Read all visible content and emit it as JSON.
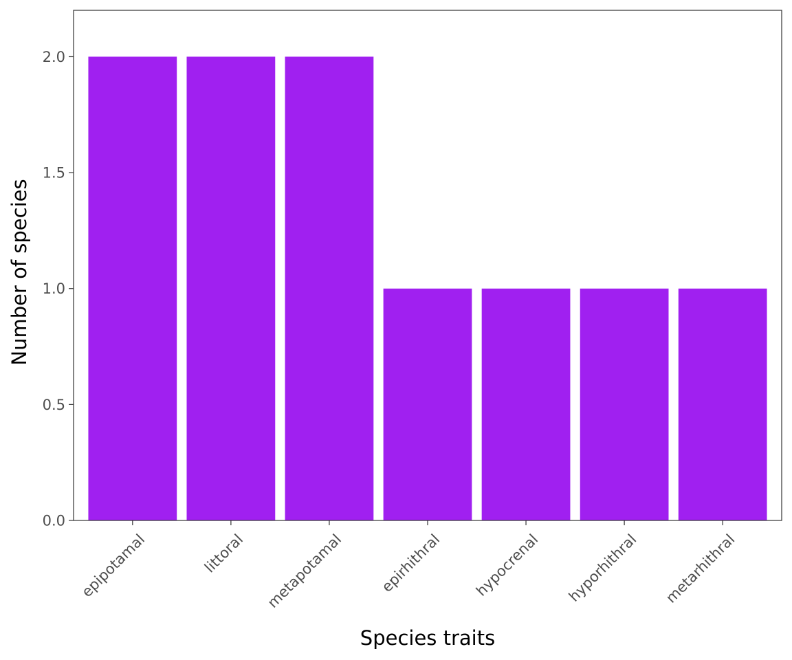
{
  "chart_data": {
    "type": "bar",
    "title": "",
    "xlabel": "Species traits",
    "ylabel": "Number of species",
    "categories": [
      "epipotamal",
      "littoral",
      "metapotamal",
      "epirhithral",
      "hypocrenal",
      "hyporhithral",
      "metarhithral"
    ],
    "values": [
      2,
      2,
      2,
      1,
      1,
      1,
      1
    ],
    "ylim": [
      0,
      2.2
    ],
    "yticks": [
      0.0,
      0.5,
      1.0,
      1.5,
      2.0
    ],
    "ytick_labels": [
      "0.0",
      "0.5",
      "1.0",
      "1.5",
      "2.0"
    ],
    "grid": false,
    "legend": "none",
    "colors": {
      "bar": "#a020f0",
      "panel_border": "#333333",
      "tick": "#333333",
      "tick_label": "#4d4d4d",
      "axis_title": "#000000"
    }
  }
}
